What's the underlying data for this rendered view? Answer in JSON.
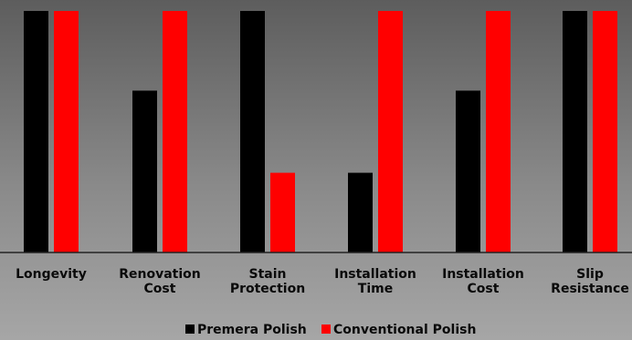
{
  "chart_data": {
    "type": "bar",
    "categories": [
      [
        "Longevity"
      ],
      [
        "Renovation",
        "Cost"
      ],
      [
        "Stain",
        "Protection"
      ],
      [
        "Installation",
        "Time"
      ],
      [
        "Installation",
        "Cost"
      ],
      [
        "Slip",
        "Resistance"
      ]
    ],
    "series": [
      {
        "name": "Premera Polish",
        "color": "#000000",
        "values": [
          100,
          67,
          100,
          33,
          67,
          100
        ]
      },
      {
        "name": "Conventional Polish",
        "color": "#ff0000",
        "values": [
          100,
          100,
          33,
          100,
          100,
          100
        ]
      }
    ],
    "ylim": [
      0,
      100
    ],
    "grid": false,
    "legend_position": "bottom-center"
  }
}
